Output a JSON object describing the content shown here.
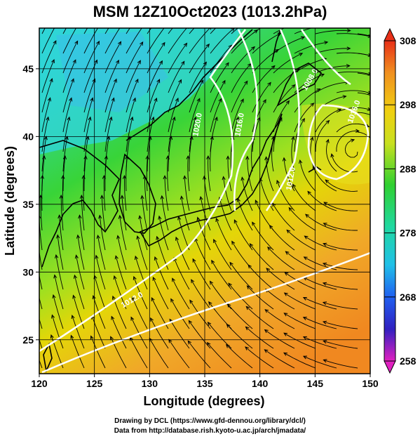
{
  "title": "MSM 12Z10Oct2023 (1013.2hPa)",
  "xlabel": "Longitude (degrees)",
  "ylabel": "Latitude  (degrees)",
  "x_ticks": [
    "120",
    "125",
    "130",
    "135",
    "140",
    "145",
    "150"
  ],
  "y_ticks": [
    "25",
    "30",
    "35",
    "40",
    "45"
  ],
  "colorbar_ticks": [
    "308",
    "298",
    "288",
    "278",
    "268",
    "258"
  ],
  "contour_labels": [
    "1020.0",
    "1016.0",
    "1012.0",
    "1008.0",
    "1016.0",
    "1012.0"
  ],
  "credit_line1": "Drawing by DCL (https://www.gfd-dennou.org/library/dcl/)",
  "credit_line2": "Data from http://database.rish.kyoto-u.ac.jp/arch/jmadata/",
  "map": {
    "lon_range": [
      120,
      150
    ],
    "lat_range": [
      22.5,
      48
    ],
    "colorbar_range": [
      258,
      308
    ],
    "grid": true,
    "colors": {
      "cold_cyan": "#2fd4e8",
      "green": "#2fd63a",
      "yellow_green": "#a8e01e",
      "yellow": "#e8d800",
      "orange": "#f2a020",
      "contour": "#ffffff",
      "coast": "#000000"
    }
  }
}
